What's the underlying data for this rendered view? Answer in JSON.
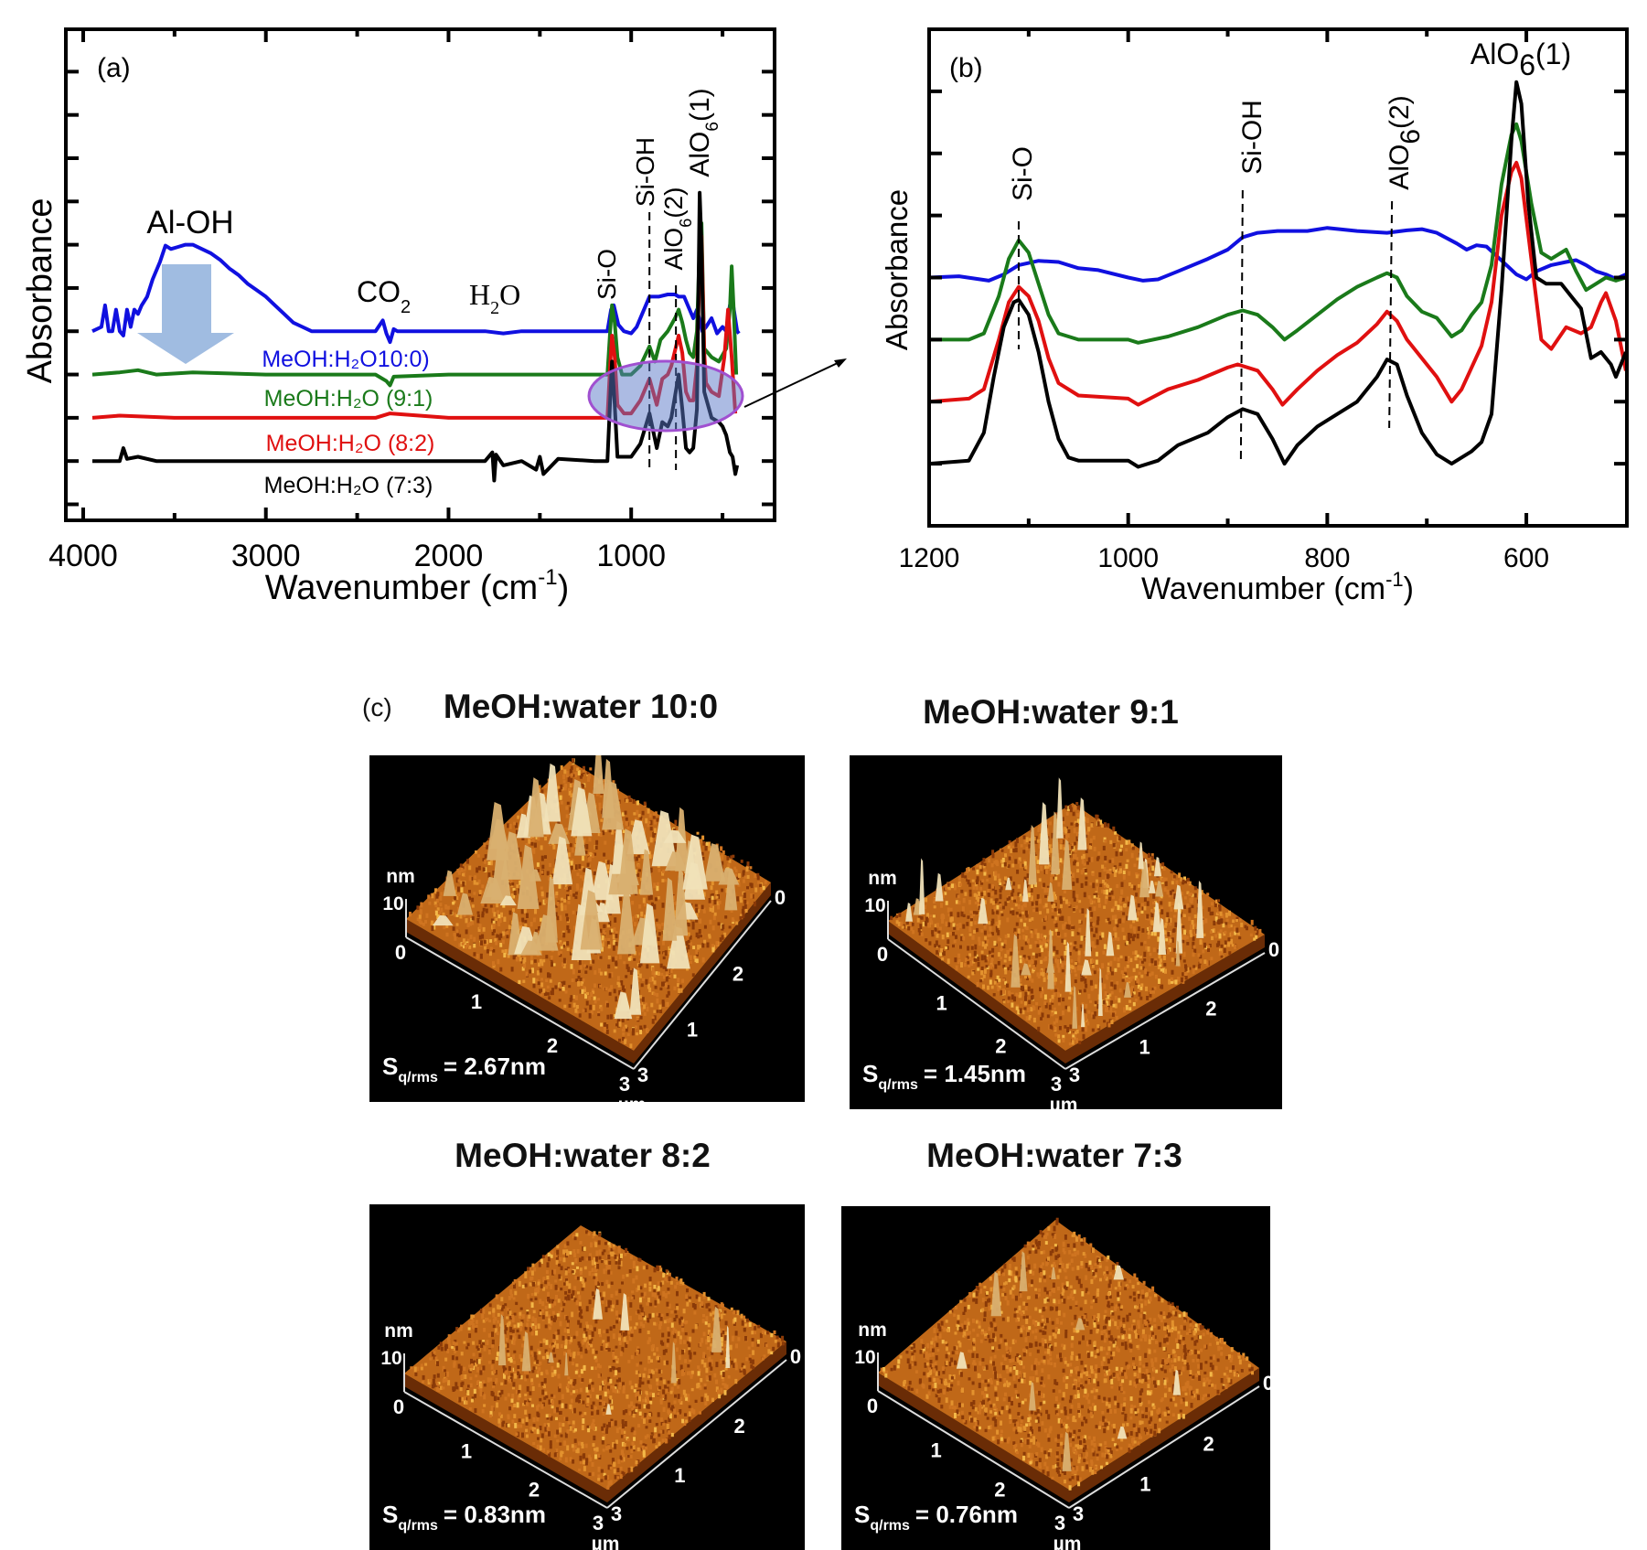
{
  "chart_data": [
    {
      "panel_label": "(a)",
      "type": "line",
      "xlabel": "Wavenumber (cm",
      "xlabel_sup": "-1",
      "xlabel_tail": ")",
      "ylabel": "Absorbance",
      "xlim": [
        4095,
        215
      ],
      "ylim": [
        -1.37,
        9.98
      ],
      "x_reversed": true,
      "xticks": [
        4000,
        3000,
        2000,
        1000
      ],
      "y_tick_labels_shown": false,
      "grid": false,
      "series": [
        {
          "name": "MeOH:H₂O10:0)",
          "color": "#1010e0",
          "x": [
            3950,
            3900,
            3880,
            3860,
            3840,
            3820,
            3800,
            3780,
            3760,
            3740,
            3720,
            3700,
            3680,
            3650,
            3620,
            3580,
            3550,
            3520,
            3480,
            3440,
            3400,
            3350,
            3300,
            3250,
            3200,
            3150,
            3100,
            3050,
            3000,
            2950,
            2900,
            2850,
            2800,
            2750,
            2600,
            2400,
            2360,
            2340,
            2320,
            2300,
            2280,
            2200,
            2000,
            1800,
            1700,
            1600,
            1400,
            1200,
            1130,
            1110,
            1095,
            1070,
            1040,
            1000,
            970,
            940,
            900,
            850,
            800,
            760,
            740,
            710,
            690,
            660,
            640,
            610,
            590,
            560,
            530,
            500,
            480,
            460,
            440,
            420,
            410
          ],
          "y": [
            3.0,
            3.1,
            3.6,
            3.0,
            3.0,
            3.5,
            3.0,
            2.9,
            3.5,
            3.1,
            3.5,
            3.4,
            3.6,
            3.8,
            4.2,
            4.6,
            4.98,
            4.9,
            4.95,
            5.0,
            5.0,
            4.9,
            4.8,
            4.65,
            4.45,
            4.3,
            4.1,
            3.95,
            3.8,
            3.6,
            3.4,
            3.2,
            3.1,
            3.0,
            3.0,
            3.0,
            3.25,
            2.95,
            2.75,
            3.05,
            3.0,
            3.0,
            3.0,
            3.0,
            2.95,
            3.0,
            3.0,
            3.0,
            3.0,
            3.5,
            3.6,
            3.15,
            3.0,
            2.95,
            3.1,
            3.4,
            3.8,
            3.8,
            3.85,
            3.85,
            3.8,
            3.8,
            3.6,
            3.3,
            3.5,
            3.0,
            3.1,
            3.3,
            2.95,
            3.1,
            3.0,
            3.6,
            3.55,
            3.0,
            2.95
          ]
        },
        {
          "name": "MeOH:H₂O (9:1)",
          "color": "#1a7a1a",
          "x": [
            3950,
            3800,
            3700,
            3600,
            3400,
            3000,
            2400,
            2340,
            2320,
            2300,
            2000,
            1600,
            1200,
            1130,
            1115,
            1105,
            1090,
            1075,
            1050,
            1000,
            950,
            900,
            870,
            840,
            800,
            760,
            740,
            720,
            700,
            680,
            660,
            640,
            625,
            615,
            600,
            560,
            520,
            480,
            460,
            450,
            440,
            425
          ],
          "y": [
            2.0,
            2.05,
            2.1,
            2.0,
            2.05,
            2.0,
            2.0,
            1.85,
            1.75,
            1.95,
            2.0,
            2.0,
            2.0,
            2.0,
            3.0,
            3.6,
            3.2,
            2.4,
            2.0,
            2.0,
            2.2,
            2.65,
            2.3,
            2.8,
            3.0,
            3.3,
            3.5,
            3.2,
            2.8,
            2.5,
            2.4,
            3.0,
            5.0,
            5.5,
            2.6,
            2.4,
            2.3,
            2.6,
            3.5,
            4.5,
            3.6,
            2.0
          ]
        },
        {
          "name": "MeOH:H₂O (8:2)",
          "color": "#e01010",
          "x": [
            3950,
            3800,
            3500,
            3000,
            2400,
            2320,
            2000,
            1600,
            1200,
            1130,
            1115,
            1105,
            1090,
            1075,
            1040,
            1000,
            950,
            900,
            860,
            830,
            800,
            780,
            740,
            720,
            700,
            680,
            660,
            640,
            625,
            615,
            600,
            590,
            560,
            520,
            490,
            470,
            450,
            430
          ],
          "y": [
            1.0,
            1.05,
            1.0,
            1.0,
            1.0,
            1.1,
            1.0,
            1.0,
            1.0,
            1.0,
            2.2,
            2.9,
            2.4,
            1.3,
            1.1,
            1.1,
            1.4,
            1.9,
            1.3,
            1.9,
            2.0,
            2.2,
            2.9,
            2.5,
            1.6,
            1.4,
            1.4,
            2.2,
            4.5,
            5.2,
            2.5,
            1.8,
            1.6,
            1.5,
            2.4,
            3.5,
            2.4,
            1.1
          ]
        },
        {
          "name": "MeOH:H₂O (7:3)",
          "color": "#000000",
          "x": [
            3950,
            3800,
            3780,
            3760,
            3700,
            3600,
            3000,
            2400,
            2000,
            1800,
            1760,
            1750,
            1740,
            1700,
            1600,
            1520,
            1500,
            1480,
            1400,
            1200,
            1130,
            1115,
            1105,
            1090,
            1075,
            1040,
            1000,
            950,
            900,
            860,
            830,
            800,
            780,
            740,
            720,
            700,
            680,
            660,
            640,
            630,
            625,
            615,
            600,
            580,
            560,
            520,
            500,
            480,
            460,
            445,
            430,
            420
          ],
          "y": [
            0.0,
            0.0,
            0.3,
            0.05,
            0.1,
            0.0,
            0.0,
            0.0,
            0.0,
            0.0,
            0.2,
            -0.45,
            0.15,
            -0.1,
            0.0,
            -0.2,
            0.1,
            -0.3,
            0.05,
            0.0,
            0.0,
            1.4,
            2.3,
            1.3,
            0.1,
            0.1,
            0.1,
            0.4,
            1.1,
            0.3,
            0.9,
            0.8,
            1.0,
            2.0,
            1.2,
            0.3,
            0.2,
            0.3,
            1.2,
            4.5,
            6.2,
            5.0,
            1.6,
            1.3,
            1.0,
            0.9,
            0.8,
            0.6,
            0.2,
            0.1,
            -0.3,
            -0.1
          ]
        }
      ],
      "annotations": [
        {
          "label": "Si-OH",
          "x": 900
        },
        {
          "label": "AlO6(2)",
          "x": 755
        }
      ]
    },
    {
      "panel_label": "(b)",
      "type": "line",
      "xlabel": "Wavenumber (cm",
      "xlabel_sup": "-1",
      "xlabel_tail": ")",
      "ylabel": "Absorbance",
      "xlim": [
        1200,
        499
      ],
      "ylim": [
        -1.0,
        7.0
      ],
      "x_reversed": true,
      "xticks": [
        1200,
        1000,
        800,
        600
      ],
      "y_tick_labels_shown": false,
      "grid": false,
      "series": [
        {
          "name": "MeOH:H₂O10:0)",
          "color": "#1010e0",
          "x": [
            1200,
            1170,
            1140,
            1125,
            1110,
            1090,
            1070,
            1050,
            1030,
            1000,
            985,
            970,
            950,
            920,
            900,
            885,
            870,
            850,
            820,
            800,
            770,
            740,
            720,
            705,
            690,
            670,
            660,
            650,
            640,
            630,
            620,
            610,
            600,
            590,
            575,
            560,
            550,
            540,
            530,
            520,
            510,
            500
          ],
          "y": [
            3.0,
            3.02,
            2.95,
            3.05,
            3.2,
            3.27,
            3.25,
            3.15,
            3.12,
            3.0,
            2.95,
            2.97,
            3.1,
            3.3,
            3.45,
            3.65,
            3.72,
            3.75,
            3.75,
            3.8,
            3.75,
            3.72,
            3.76,
            3.78,
            3.72,
            3.55,
            3.45,
            3.52,
            3.5,
            3.35,
            3.2,
            3.05,
            2.97,
            3.1,
            3.2,
            3.25,
            3.28,
            3.2,
            3.1,
            3.05,
            2.98,
            3.05
          ]
        },
        {
          "name": "MeOH:H₂O (9:1)",
          "color": "#1a7a1a",
          "x": [
            1200,
            1160,
            1145,
            1130,
            1120,
            1110,
            1100,
            1090,
            1080,
            1070,
            1050,
            1000,
            990,
            960,
            930,
            900,
            885,
            870,
            855,
            843,
            830,
            810,
            790,
            770,
            750,
            740,
            730,
            720,
            705,
            690,
            675,
            665,
            655,
            645,
            635,
            625,
            615,
            610,
            605,
            595,
            585,
            575,
            560,
            550,
            540,
            530,
            520,
            510,
            500
          ],
          "y": [
            2.0,
            2.0,
            2.1,
            2.7,
            3.3,
            3.6,
            3.4,
            2.9,
            2.4,
            2.1,
            2.0,
            2.0,
            1.95,
            2.05,
            2.2,
            2.4,
            2.47,
            2.4,
            2.2,
            2.0,
            2.15,
            2.4,
            2.65,
            2.85,
            3.0,
            3.07,
            3.0,
            2.7,
            2.45,
            2.35,
            2.05,
            2.15,
            2.4,
            2.6,
            3.2,
            4.5,
            5.3,
            5.47,
            5.2,
            4.2,
            3.4,
            3.3,
            3.45,
            3.1,
            2.8,
            2.9,
            3.0,
            2.95,
            3.0
          ]
        },
        {
          "name": "MeOH:H₂O (8:2)",
          "color": "#e01010",
          "x": [
            1200,
            1160,
            1145,
            1130,
            1120,
            1110,
            1100,
            1090,
            1080,
            1070,
            1050,
            1000,
            990,
            960,
            930,
            900,
            890,
            870,
            855,
            845,
            830,
            810,
            790,
            770,
            750,
            740,
            730,
            720,
            705,
            690,
            675,
            665,
            655,
            645,
            635,
            625,
            615,
            610,
            605,
            595,
            585,
            575,
            560,
            545,
            535,
            525,
            520,
            510,
            500
          ],
          "y": [
            1.0,
            1.05,
            1.2,
            2.0,
            2.6,
            2.85,
            2.7,
            2.3,
            1.7,
            1.3,
            1.1,
            1.05,
            0.95,
            1.2,
            1.35,
            1.55,
            1.6,
            1.5,
            1.2,
            0.95,
            1.2,
            1.5,
            1.75,
            1.95,
            2.25,
            2.45,
            2.3,
            2.0,
            1.7,
            1.4,
            1.0,
            1.2,
            1.55,
            1.9,
            2.6,
            4.0,
            4.7,
            4.85,
            4.6,
            3.3,
            2.0,
            1.85,
            2.2,
            2.1,
            2.2,
            2.6,
            2.75,
            2.3,
            1.5
          ]
        },
        {
          "name": "MeOH:H₂O (7:3)",
          "color": "#000000",
          "x": [
            1200,
            1160,
            1145,
            1135,
            1125,
            1115,
            1110,
            1100,
            1090,
            1080,
            1070,
            1060,
            1050,
            1000,
            990,
            970,
            950,
            920,
            900,
            885,
            870,
            855,
            843,
            830,
            810,
            790,
            770,
            750,
            740,
            730,
            720,
            705,
            690,
            675,
            665,
            655,
            645,
            635,
            625,
            615,
            610,
            605,
            598,
            590,
            580,
            565,
            555,
            545,
            535,
            525,
            515,
            510,
            500
          ],
          "y": [
            0.0,
            0.05,
            0.5,
            1.4,
            2.2,
            2.6,
            2.64,
            2.4,
            1.8,
            1.0,
            0.4,
            0.1,
            0.05,
            0.05,
            -0.05,
            0.05,
            0.3,
            0.5,
            0.75,
            0.88,
            0.8,
            0.4,
            0.0,
            0.3,
            0.6,
            0.8,
            1.0,
            1.4,
            1.68,
            1.6,
            1.1,
            0.5,
            0.15,
            0.0,
            0.1,
            0.2,
            0.35,
            0.8,
            2.8,
            5.2,
            6.15,
            5.8,
            4.2,
            3.0,
            2.9,
            2.9,
            2.7,
            2.5,
            1.7,
            1.8,
            1.6,
            1.4,
            1.8
          ]
        }
      ],
      "annotations": [
        {
          "label": "Si-O",
          "x": 1110
        },
        {
          "label": "Si-OH",
          "x": 885
        },
        {
          "label": "AlO6(2)",
          "x": 735
        },
        {
          "label": "AlO6(1)",
          "x": 610
        }
      ]
    }
  ],
  "panel_a": {
    "label": "(a)",
    "ylabel": "Absorbance",
    "xlabel": {
      "main": "Wavenumber (cm",
      "sup": "-1",
      "tail": ")"
    },
    "xticks": [
      "4000",
      "3000",
      "2000",
      "1000"
    ],
    "al_oh": "Al-OH",
    "co2": {
      "base": "CO",
      "sub": "2"
    },
    "h2o": {
      "base": "H",
      "sub": "2",
      "tail": "O"
    },
    "si_o": "Si-O",
    "si_oh": "Si-OH",
    "alo6_2": {
      "base": "AlO",
      "sub": "6",
      "tail": "(2)"
    },
    "alo6_1": {
      "base": "AlO",
      "sub": "6",
      "tail": "(1)"
    },
    "legend": [
      "MeOH:H₂O10:0)",
      "MeOH:H₂O (9:1)",
      "MeOH:H₂O (8:2)",
      "MeOH:H₂O (7:3)"
    ],
    "arrow_color": "#8fb0dc",
    "ellipse_color": "#a050d0"
  },
  "panel_b": {
    "label": "(b)",
    "ylabel": "Absorbance",
    "xlabel": {
      "main": "Wavenumber (cm",
      "sup": "-1",
      "tail": ")"
    },
    "xticks": [
      "1200",
      "1000",
      "800",
      "600"
    ],
    "si_o": "Si-O",
    "si_oh": "Si-OH",
    "alo6_2": {
      "base": "AlO",
      "sub": "6",
      "tail": "(2)"
    },
    "alo6_1": {
      "base": "AlO",
      "sub": "6",
      "tail": "(1)"
    }
  },
  "panel_c": {
    "label": "(c)",
    "axis_labels": {
      "z_unit": "nm",
      "z_max": "10",
      "zero": "0",
      "one": "1",
      "two": "2",
      "three": "3",
      "lateral_unit": "µm"
    },
    "sq_prefix": "S",
    "sq_sub": "q/rms",
    "images": [
      {
        "title": "MeOH:water 10:0",
        "sq_value": "= 2.67nm",
        "sq_nm": 2.67
      },
      {
        "title": "MeOH:water 9:1",
        "sq_value": "= 1.45nm",
        "sq_nm": 1.45
      },
      {
        "title": "MeOH:water 8:2",
        "sq_value": "= 0.83nm",
        "sq_nm": 0.83
      },
      {
        "title": "MeOH:water 7:3",
        "sq_value": "= 0.76nm",
        "sq_nm": 0.76
      }
    ],
    "surface_color": "#c06818",
    "spike_color": "#f0e2b8"
  }
}
